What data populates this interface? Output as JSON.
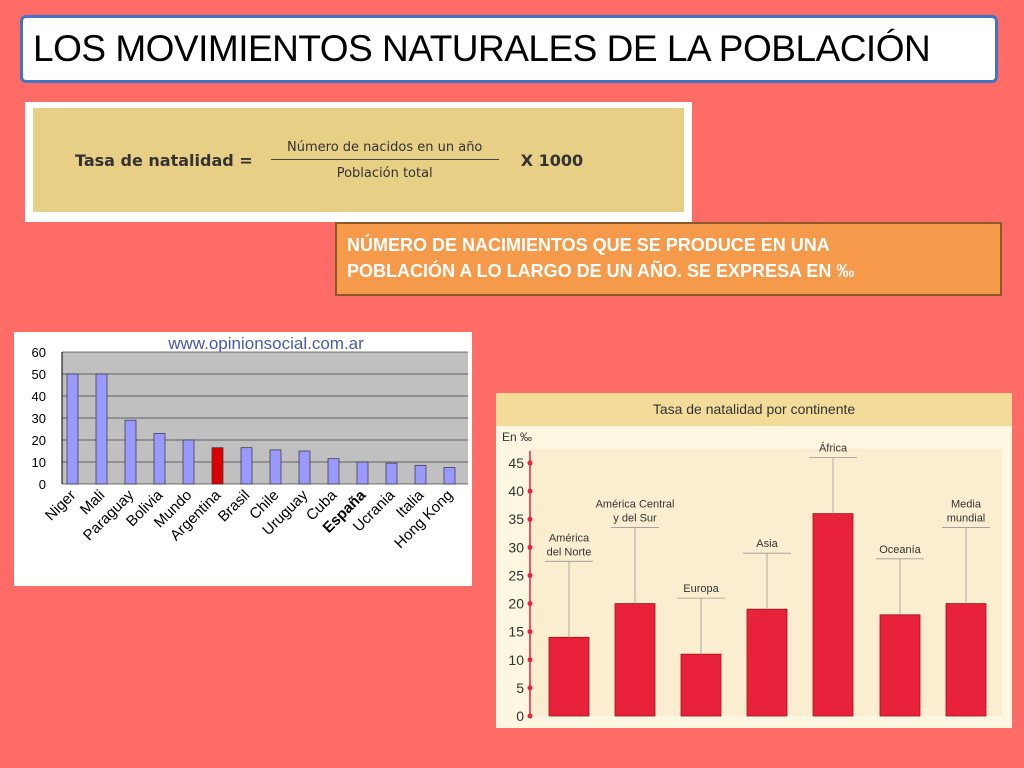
{
  "title": "LOS MOVIMIENTOS NATURALES DE LA POBLACIÓN",
  "formula": {
    "label": "Tasa de natalidad =",
    "numerator": "Número de nacidos en un año",
    "denominator": "Población total",
    "multiplier": "X 1000"
  },
  "definition": {
    "line1": "NÚMERO DE NACIMIENTOS QUE SE PRODUCE EN UNA",
    "line2": "POBLACIÓN A LO LARGO DE UN AÑO. SE EXPRESA EN  ‰"
  },
  "colors": {
    "background": "#ff6b66",
    "bar1": "#9999ff",
    "bar1_highlight": "#dd0000",
    "bar2": "#e8223a"
  },
  "chart_data": [
    {
      "type": "bar",
      "title": "www.opinionsocial.com.ar",
      "categories": [
        "Niger",
        "Mali",
        "Paraguay",
        "Bolivia",
        "Mundo",
        "Argentina",
        "Brasil",
        "Chile",
        "Uruguay",
        "Cuba",
        "España",
        "Ucrania",
        "Italia",
        "Hong Kong"
      ],
      "values": [
        50,
        50,
        29,
        23,
        20,
        16.5,
        16.5,
        15.5,
        15,
        11.5,
        10,
        9.5,
        8.5,
        7.5
      ],
      "highlight": "Argentina",
      "bold_category": "España",
      "ylim": [
        0,
        60
      ],
      "yticks": [
        0,
        10,
        20,
        30,
        40,
        50,
        60
      ],
      "grid": true
    },
    {
      "type": "bar",
      "title": "Tasa de natalidad por continente",
      "unit_label": "En ‰",
      "categories": [
        {
          "line1": "América",
          "line2": "del Norte"
        },
        {
          "line1": "América Central",
          "line2": "y del Sur"
        },
        {
          "line1": "Europa",
          "line2": ""
        },
        {
          "line1": "Asia",
          "line2": ""
        },
        {
          "line1": "África",
          "line2": ""
        },
        {
          "line1": "Oceanía",
          "line2": ""
        },
        {
          "line1": "Media",
          "line2": "mundial"
        }
      ],
      "values": [
        14,
        20,
        11,
        19,
        36,
        18,
        20
      ],
      "ylim": [
        0,
        45
      ],
      "yticks": [
        0,
        5,
        10,
        15,
        20,
        25,
        30,
        35,
        40,
        45
      ]
    }
  ]
}
